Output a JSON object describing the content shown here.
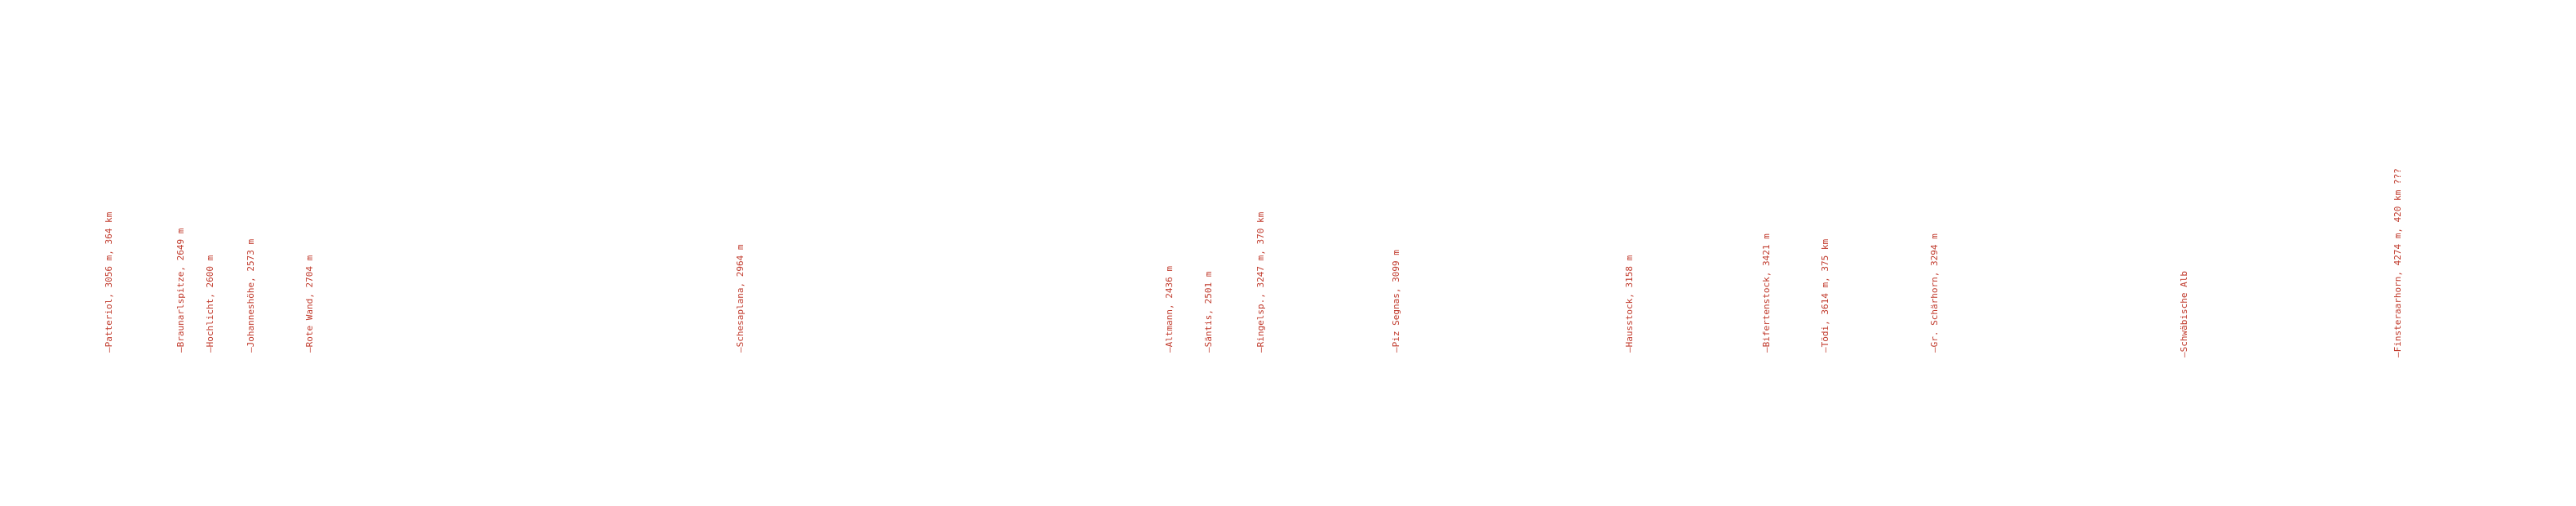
{
  "colors": {
    "background": "#ffffff",
    "label": "#c0392b"
  },
  "peaks": [
    {
      "label": "—Patteriol, 3056 m, 364 km"
    },
    {
      "label": "—Braunarlspitze, 2649 m"
    },
    {
      "label": "—Hochlicht, 2600 m"
    },
    {
      "label": "—Johanneshöhe, 2573 m"
    },
    {
      "label": "—Rote Wand, 2704 m"
    },
    {
      "label": "—Schesaplana, 2964 m"
    },
    {
      "label": "—Altmann, 2436 m"
    },
    {
      "label": "—Säntis, 2501 m"
    },
    {
      "label": "—Ringelsp., 3247 m, 370 km"
    },
    {
      "label": "—Piz Segnas, 3099 m"
    },
    {
      "label": "—Hausstock, 3158 m"
    },
    {
      "label": "—Bifertenstock, 3421 m"
    },
    {
      "label": "—Tödi, 3614 m, 375 km"
    },
    {
      "label": "—Gr. Schärhorn, 3294 m"
    },
    {
      "label": "—Schwäbische Alb"
    },
    {
      "label": "—Finsteraarhorn, 4274 m, 420 km ???"
    }
  ]
}
